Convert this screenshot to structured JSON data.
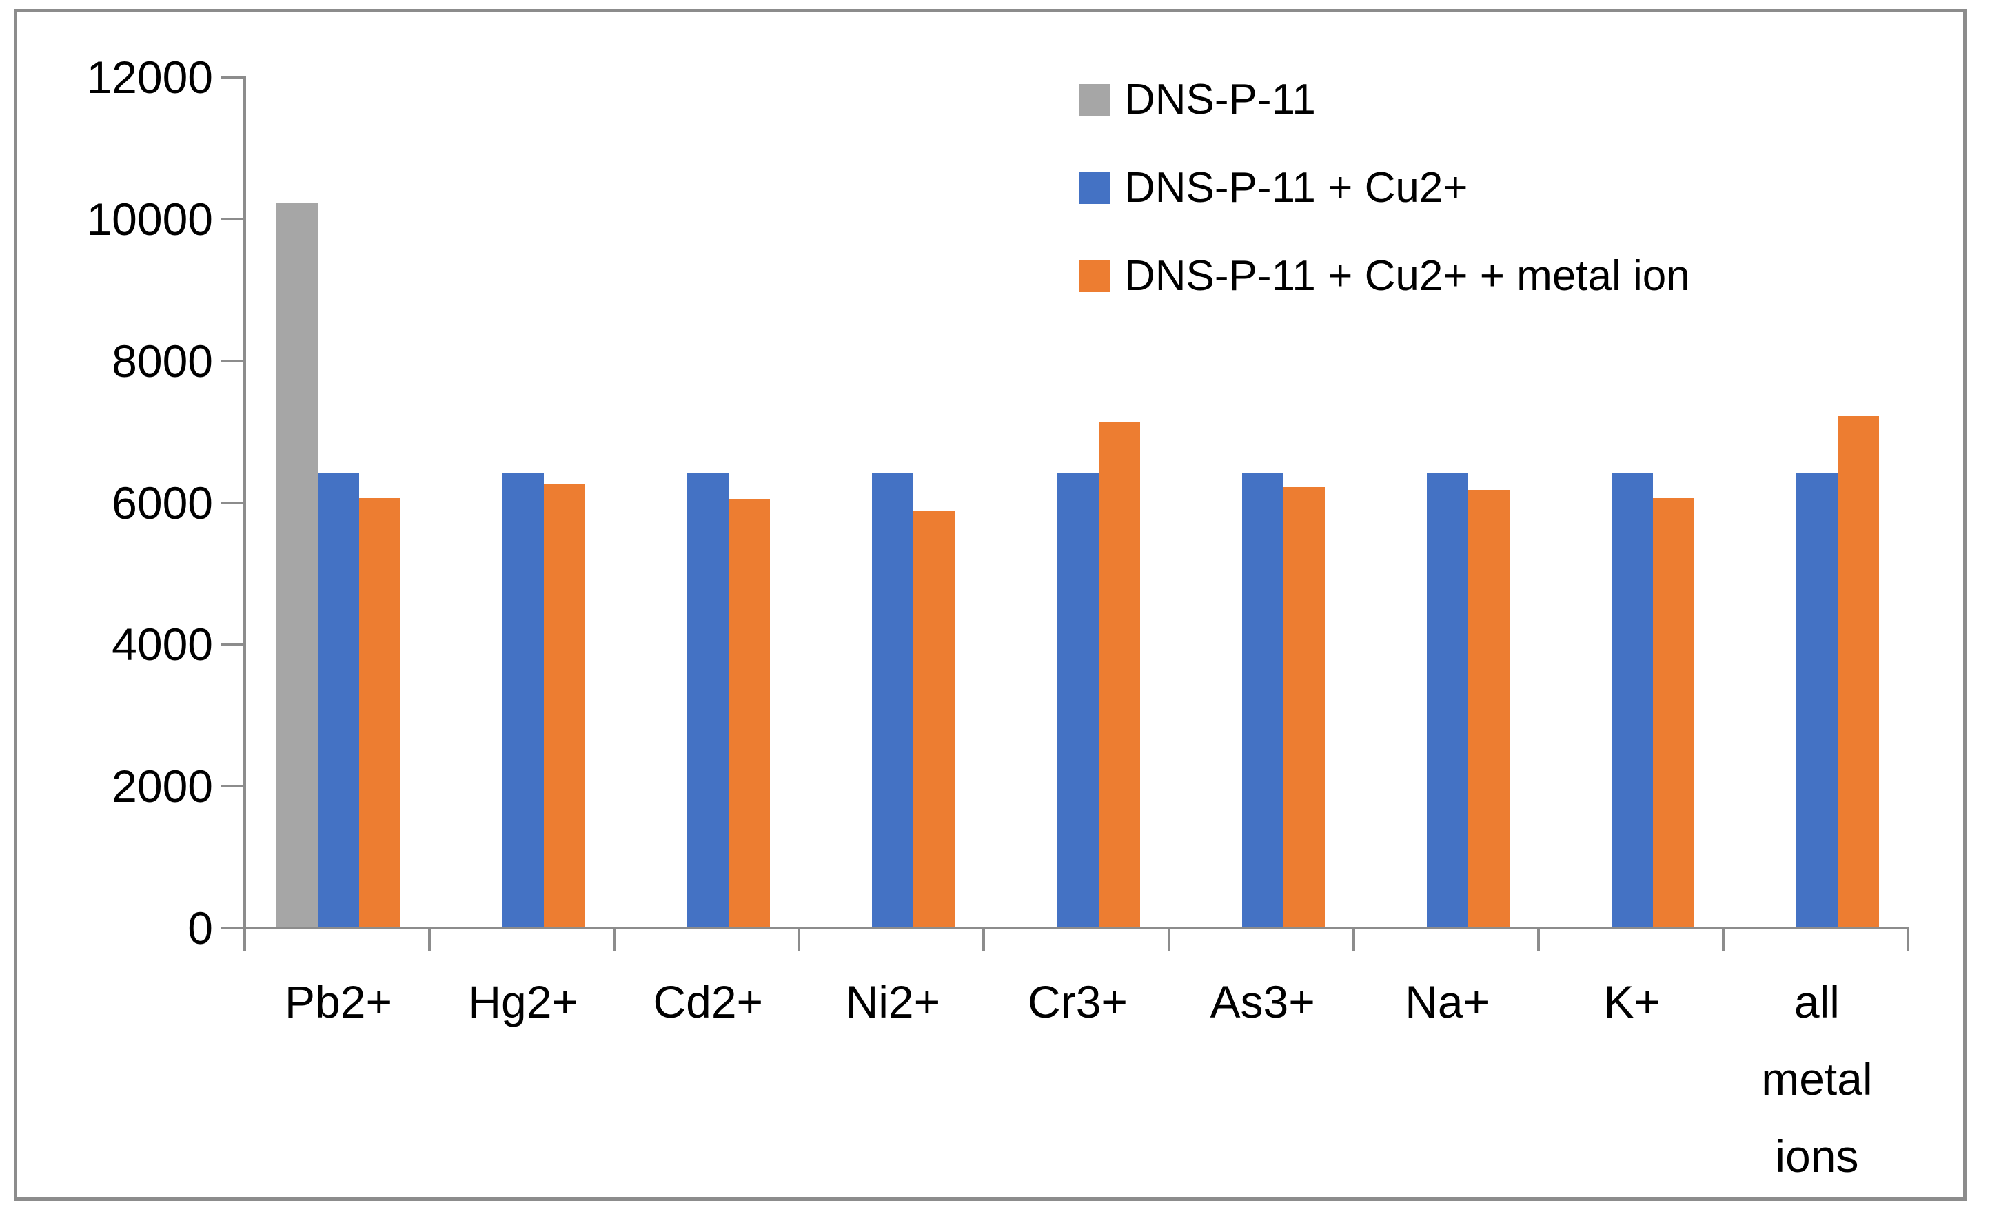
{
  "chart_data": {
    "type": "bar",
    "title": "",
    "xlabel": "",
    "ylabel": "",
    "grid": false,
    "legend_position": "top-right-inside",
    "axis_color": "#8C8C8C",
    "text_color": "#000000",
    "background_color": "#ffffff",
    "y_axis": {
      "min": 0,
      "max": 12000,
      "step": 2000,
      "tick_labels": [
        "0",
        "2000",
        "4000",
        "6000",
        "8000",
        "10000",
        "12000"
      ]
    },
    "categories": [
      "Pb2+",
      "Hg2+",
      "Cd2+",
      "Ni2+",
      "Cr3+",
      "As3+",
      "Na+",
      "K+",
      "all metal ions"
    ],
    "series": [
      {
        "name": "DNS-P-11",
        "color": "#A6A6A6",
        "values": [
          10200,
          null,
          null,
          null,
          null,
          null,
          null,
          null,
          null
        ]
      },
      {
        "name": "DNS-P-11 + Cu2+",
        "color": "#4472C4",
        "values": [
          6390,
          6390,
          6390,
          6390,
          6390,
          6390,
          6390,
          6390,
          6390
        ]
      },
      {
        "name": "DNS-P-11 + Cu2+ + metal ion",
        "color": "#ED7D31",
        "values": [
          6040,
          6250,
          6020,
          5870,
          7120,
          6200,
          6160,
          6040,
          7200
        ]
      }
    ]
  }
}
